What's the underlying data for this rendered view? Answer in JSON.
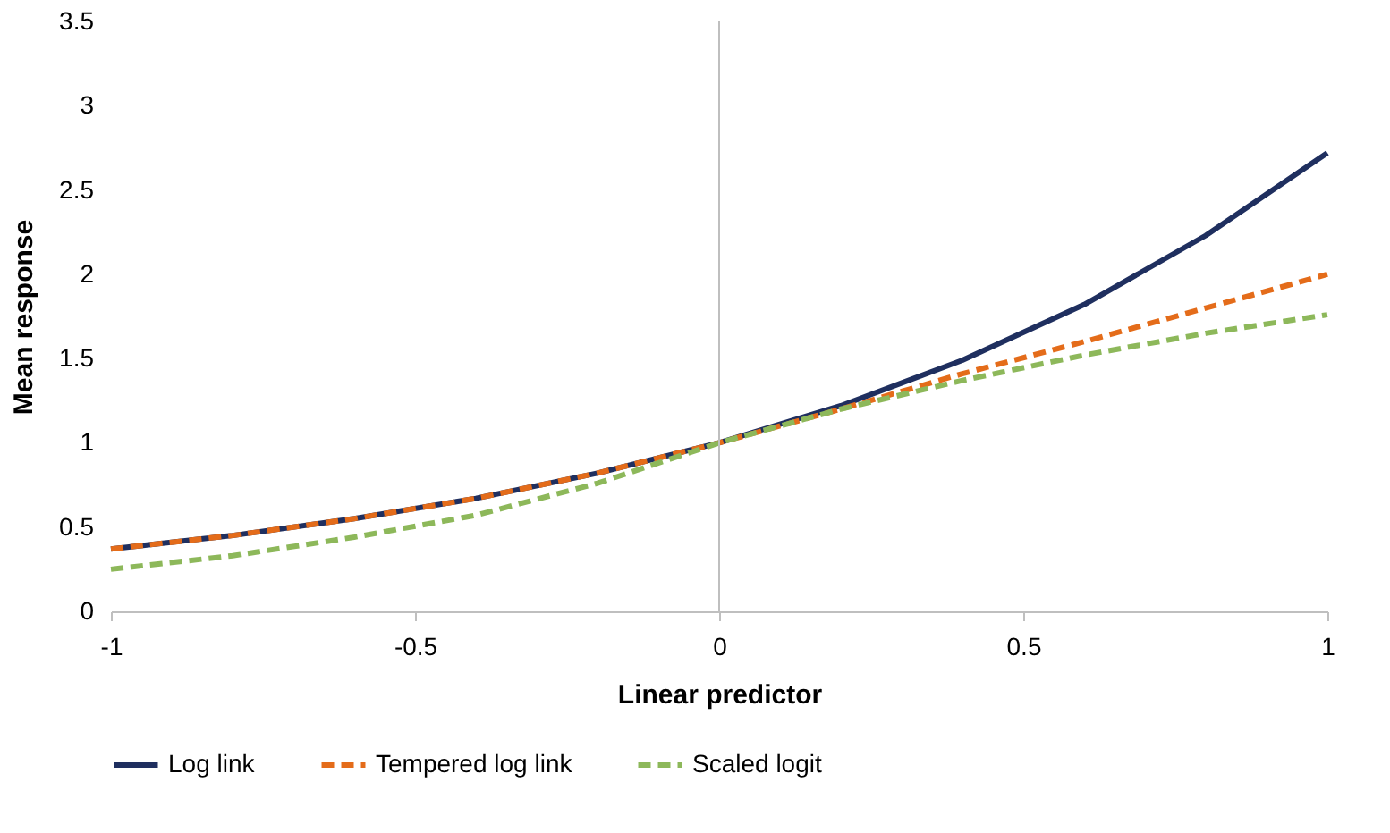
{
  "chart_data": {
    "type": "line",
    "xlabel": "Linear predictor",
    "ylabel": "Mean response",
    "x": [
      -1,
      -0.8,
      -0.6,
      -0.4,
      -0.2,
      0,
      0.2,
      0.4,
      0.6,
      0.8,
      1
    ],
    "series": [
      {
        "name": "Log link",
        "color": "#1f2f5f",
        "line_style": "solid",
        "values": [
          0.37,
          0.45,
          0.55,
          0.67,
          0.82,
          1,
          1.22,
          1.49,
          1.82,
          2.23,
          2.72
        ]
      },
      {
        "name": "Tempered log link",
        "color": "#e46c1a",
        "line_style": "dashed",
        "values": [
          0.37,
          0.45,
          0.55,
          0.67,
          0.82,
          1,
          1.2,
          1.41,
          1.6,
          1.8,
          2.0
        ]
      },
      {
        "name": "Scaled logit",
        "color": "#8db85a",
        "line_style": "dashed",
        "values": [
          0.25,
          0.33,
          0.44,
          0.57,
          0.76,
          1,
          1.2,
          1.37,
          1.52,
          1.65,
          1.76
        ]
      }
    ],
    "xlim": [
      -1,
      1
    ],
    "xticks": [
      -1,
      -0.5,
      0,
      0.5,
      1
    ],
    "ylim": [
      0,
      3.5
    ],
    "yticks": [
      0,
      0.5,
      1,
      1.5,
      2,
      2.5,
      3,
      3.5
    ],
    "ref_lines": [
      {
        "axis": "x",
        "value": 0,
        "color": "#bfbfbf"
      }
    ],
    "grid": false,
    "legend": "bottom"
  }
}
